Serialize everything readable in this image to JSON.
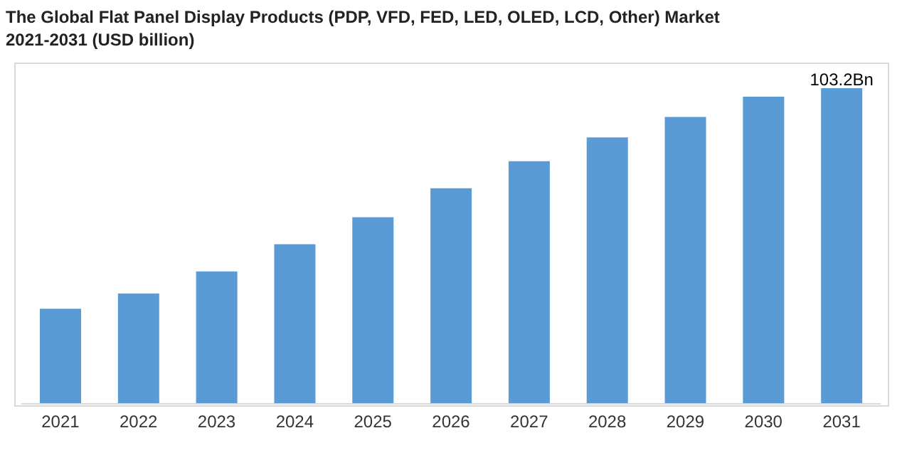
{
  "chart_data": {
    "type": "bar",
    "title": "The Global Flat Panel Display Products (PDP, VFD, FED, LED, OLED, LCD, Other) Market 2021-2031 (USD billion)",
    "categories": [
      "2021",
      "2022",
      "2023",
      "2024",
      "2025",
      "2026",
      "2027",
      "2028",
      "2029",
      "2030",
      "2031"
    ],
    "values": [
      31.1,
      36.1,
      43.3,
      52.2,
      61.0,
      70.5,
      79.3,
      87.1,
      93.8,
      100.4,
      103.2
    ],
    "value_labels": [
      null,
      null,
      null,
      null,
      null,
      null,
      null,
      null,
      null,
      null,
      "103.2Bn"
    ],
    "color": "#5b9bd5"
  }
}
